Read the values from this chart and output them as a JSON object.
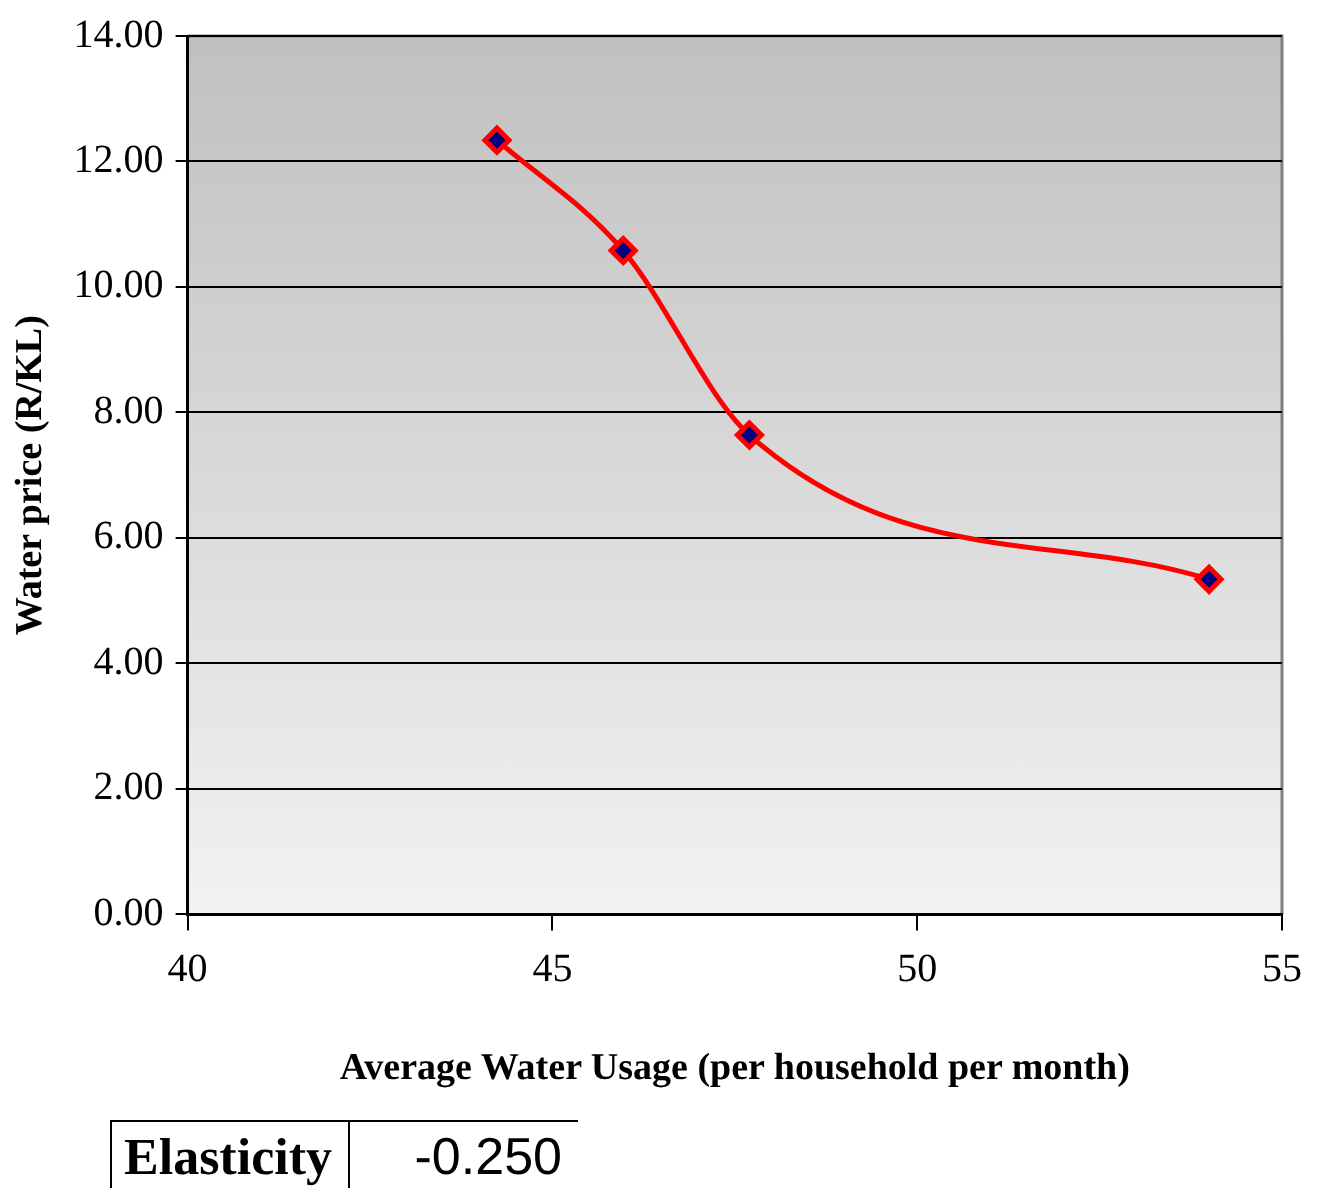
{
  "chart_data": {
    "type": "line",
    "xlabel": "Average Water Usage (per household per month)",
    "ylabel": "Water price (R/KL)",
    "x": [
      44.24,
      45.97,
      47.7,
      54.0
    ],
    "series": [
      {
        "color": "#ff0000",
        "values": [
          12.34,
          10.58,
          7.64,
          5.34
        ]
      }
    ],
    "xlim": [
      40,
      55
    ],
    "xticks": [
      40,
      45,
      50,
      55
    ],
    "ylim": [
      0,
      14
    ],
    "yticks": [
      {
        "value": 0,
        "label": "0.00"
      },
      {
        "value": 2,
        "label": "2.00"
      },
      {
        "value": 4,
        "label": "4.00"
      },
      {
        "value": 6,
        "label": "6.00"
      },
      {
        "value": 8,
        "label": "8.00"
      },
      {
        "value": 10,
        "label": "10.00"
      },
      {
        "value": 12,
        "label": "12.00"
      },
      {
        "value": 14,
        "label": "14.00"
      }
    ],
    "grid": "y",
    "marker": "diamond",
    "line_style": "solid",
    "legend": false,
    "annotations": [
      "Elasticity",
      "-0.250"
    ]
  }
}
